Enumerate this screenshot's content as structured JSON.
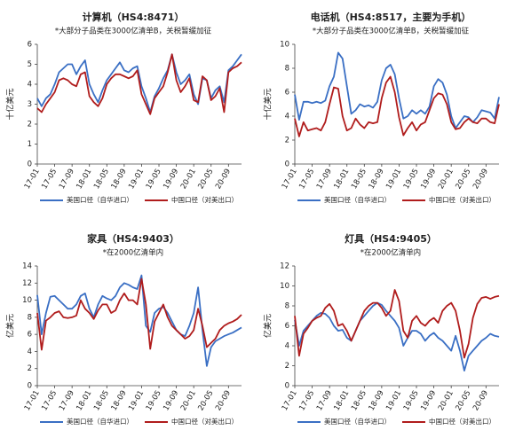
{
  "chart_data": [
    {
      "type": "line",
      "title": "计算机（HS4:8471）",
      "subtitle": "*大部分子品类在3000亿清单B，关税暂缓加征",
      "ylabel": "十亿美元",
      "categories": [
        "17-01",
        null,
        null,
        null,
        "17-05",
        null,
        null,
        null,
        "17-09",
        null,
        null,
        null,
        "18-01",
        null,
        null,
        null,
        "18-05",
        null,
        null,
        null,
        "18-09",
        null,
        null,
        null,
        "19-01",
        null,
        null,
        null,
        "19-05",
        null,
        null,
        null,
        "19-09",
        null,
        null,
        null,
        "20-01",
        null,
        null,
        null,
        "20-05",
        null,
        null,
        null,
        "20-09",
        null,
        null,
        null
      ],
      "ylim": [
        0,
        6
      ],
      "yticks": [
        0,
        1,
        2,
        3,
        4,
        5,
        6
      ],
      "series": [
        {
          "name": "美国口径（自华进口）",
          "color": "#3a6fc4",
          "values": [
            3.3,
            2.9,
            3.3,
            3.5,
            4.0,
            4.6,
            4.8,
            5.0,
            5.0,
            4.5,
            4.9,
            5.2,
            4.0,
            3.5,
            3.1,
            3.7,
            4.2,
            4.5,
            4.8,
            5.1,
            4.7,
            4.6,
            4.8,
            4.9,
            3.9,
            3.3,
            2.6,
            3.4,
            3.8,
            4.3,
            4.7,
            5.5,
            4.6,
            4.0,
            4.2,
            4.5,
            3.5,
            3.0,
            4.3,
            4.2,
            3.3,
            3.7,
            3.9,
            3.1,
            4.7,
            4.9,
            5.2,
            5.5
          ]
        },
        {
          "name": "中国口径（对美出口）",
          "color": "#b01c1c",
          "values": [
            2.8,
            2.6,
            3.0,
            3.3,
            3.6,
            4.2,
            4.3,
            4.2,
            4.0,
            3.9,
            4.5,
            4.6,
            3.4,
            3.1,
            2.9,
            3.3,
            4.0,
            4.3,
            4.5,
            4.5,
            4.4,
            4.3,
            4.4,
            4.7,
            3.5,
            3.0,
            2.5,
            3.3,
            3.6,
            3.9,
            4.6,
            5.5,
            4.2,
            3.6,
            3.9,
            4.3,
            3.2,
            3.1,
            4.4,
            4.2,
            3.2,
            3.4,
            3.8,
            2.6,
            4.6,
            4.8,
            4.9,
            5.1
          ]
        }
      ]
    },
    {
      "type": "line",
      "title": "电话机（HS4:8517，主要为手机）",
      "subtitle": "*大部分子品类在3000亿清单B，关税暂缓加征",
      "ylabel": "十亿美元",
      "categories": [
        "17-01",
        null,
        null,
        null,
        "17-05",
        null,
        null,
        null,
        "17-09",
        null,
        null,
        null,
        "18-01",
        null,
        null,
        null,
        "18-05",
        null,
        null,
        null,
        "18-09",
        null,
        null,
        null,
        "19-01",
        null,
        null,
        null,
        "19-05",
        null,
        null,
        null,
        "19-09",
        null,
        null,
        null,
        "20-01",
        null,
        null,
        null,
        "20-05",
        null,
        null,
        null,
        "20-09",
        null,
        null,
        null
      ],
      "ylim": [
        0,
        10
      ],
      "yticks": [
        0,
        2,
        4,
        6,
        8,
        10
      ],
      "series": [
        {
          "name": "美国口径（自华进口）",
          "color": "#3a6fc4",
          "values": [
            5.8,
            3.7,
            5.2,
            5.2,
            5.1,
            5.2,
            5.1,
            5.3,
            6.5,
            7.3,
            9.3,
            8.8,
            6.5,
            4.2,
            4.5,
            5.0,
            4.8,
            4.9,
            4.7,
            5.2,
            7.0,
            8.0,
            8.3,
            7.5,
            5.5,
            3.8,
            4.0,
            4.5,
            4.2,
            4.5,
            4.2,
            4.8,
            6.5,
            7.1,
            6.8,
            5.8,
            4.0,
            3.0,
            3.5,
            4.0,
            3.9,
            3.5,
            3.9,
            4.5,
            4.4,
            4.3,
            3.8,
            5.6
          ]
        },
        {
          "name": "中国口径（对美出口）",
          "color": "#b01c1c",
          "values": [
            3.8,
            2.3,
            3.5,
            2.8,
            2.9,
            3.0,
            2.8,
            3.5,
            5.0,
            6.4,
            6.3,
            4.0,
            2.8,
            3.0,
            3.8,
            3.3,
            3.0,
            3.5,
            3.4,
            3.5,
            5.5,
            6.8,
            7.3,
            6.0,
            3.9,
            2.4,
            3.0,
            3.5,
            2.8,
            3.3,
            3.5,
            4.5,
            5.5,
            5.9,
            5.8,
            5.0,
            3.5,
            2.9,
            3.0,
            3.5,
            3.8,
            3.5,
            3.4,
            3.8,
            3.8,
            3.5,
            3.4,
            5.0
          ]
        }
      ]
    },
    {
      "type": "line",
      "title": "家具（HS4:9403）",
      "subtitle": "*在2000亿清单内",
      "ylabel": "亿美元",
      "categories": [
        "17-01",
        null,
        null,
        null,
        "17-05",
        null,
        null,
        null,
        "17-09",
        null,
        null,
        null,
        "18-01",
        null,
        null,
        null,
        "18-05",
        null,
        null,
        null,
        "18-09",
        null,
        null,
        null,
        "19-01",
        null,
        null,
        null,
        "19-05",
        null,
        null,
        null,
        "19-09",
        null,
        null,
        null,
        "20-01",
        null,
        null,
        null,
        "20-05",
        null,
        null,
        null,
        "20-09",
        null,
        null,
        null
      ],
      "ylim": [
        0,
        14
      ],
      "yticks": [
        0,
        2,
        4,
        6,
        8,
        10,
        12,
        14
      ],
      "series": [
        {
          "name": "美国口径（自华进口）",
          "color": "#3a6fc4",
          "values": [
            10.6,
            6.0,
            8.5,
            10.4,
            10.5,
            10.0,
            9.5,
            9.0,
            9.0,
            9.5,
            10.5,
            10.8,
            9.0,
            8.0,
            9.5,
            10.5,
            10.2,
            10.0,
            10.5,
            11.5,
            12.0,
            11.8,
            11.5,
            11.3,
            12.9,
            7.0,
            6.3,
            8.5,
            9.0,
            9.2,
            8.5,
            7.5,
            6.5,
            6.0,
            5.8,
            7.0,
            8.5,
            11.5,
            6.5,
            2.3,
            4.5,
            5.2,
            5.5,
            5.8,
            6.0,
            6.2,
            6.5,
            6.8
          ]
        },
        {
          "name": "中国口径（对美出口）",
          "color": "#b01c1c",
          "values": [
            8.5,
            4.2,
            7.6,
            8.0,
            8.5,
            8.7,
            8.0,
            7.9,
            8.0,
            8.2,
            10.0,
            9.0,
            8.5,
            7.8,
            8.8,
            9.5,
            9.5,
            8.5,
            8.8,
            10.0,
            10.8,
            10.0,
            10.0,
            9.5,
            12.5,
            9.5,
            4.3,
            7.5,
            8.5,
            9.5,
            8.0,
            7.0,
            6.5,
            6.0,
            5.5,
            5.8,
            6.5,
            9.0,
            7.0,
            4.5,
            5.0,
            5.5,
            6.5,
            7.0,
            7.3,
            7.5,
            7.8,
            8.3
          ]
        }
      ]
    },
    {
      "type": "line",
      "title": "灯具（HS4:9405）",
      "subtitle": "*在2000亿清单内",
      "ylabel": "亿美元",
      "categories": [
        "17-01",
        null,
        null,
        null,
        "17-05",
        null,
        null,
        null,
        "17-09",
        null,
        null,
        null,
        "18-01",
        null,
        null,
        null,
        "18-05",
        null,
        null,
        null,
        "18-09",
        null,
        null,
        null,
        "19-01",
        null,
        null,
        null,
        "19-05",
        null,
        null,
        null,
        "19-09",
        null,
        null,
        null,
        "20-01",
        null,
        null,
        null,
        "20-05",
        null,
        null,
        null,
        "20-09",
        null,
        null,
        null
      ],
      "ylim": [
        0,
        12
      ],
      "yticks": [
        0,
        2,
        4,
        6,
        8,
        10,
        12
      ],
      "series": [
        {
          "name": "美国口径（自华进口）",
          "color": "#3a6fc4",
          "values": [
            6.6,
            4.0,
            5.5,
            6.0,
            6.5,
            7.0,
            7.3,
            7.2,
            6.8,
            6.0,
            5.5,
            5.6,
            4.8,
            4.5,
            5.5,
            6.5,
            7.0,
            7.5,
            8.0,
            8.3,
            8.1,
            7.5,
            7.0,
            6.5,
            5.8,
            4.0,
            4.8,
            5.5,
            5.5,
            5.2,
            4.5,
            5.0,
            5.3,
            4.8,
            4.5,
            4.0,
            3.5,
            5.0,
            3.5,
            1.5,
            3.0,
            3.5,
            4.0,
            4.5,
            4.8,
            5.2,
            5.0,
            4.9
          ]
        },
        {
          "name": "中国口径（对美出口）",
          "color": "#b01c1c",
          "values": [
            7.0,
            3.0,
            5.2,
            5.8,
            6.5,
            6.8,
            7.0,
            7.8,
            8.2,
            7.5,
            6.0,
            6.2,
            5.5,
            4.5,
            5.5,
            6.5,
            7.5,
            8.0,
            8.3,
            8.3,
            7.8,
            7.0,
            7.5,
            9.6,
            8.5,
            5.5,
            4.8,
            6.5,
            7.0,
            6.3,
            6.0,
            6.5,
            6.8,
            6.3,
            7.5,
            8.0,
            8.3,
            7.5,
            5.5,
            2.8,
            4.2,
            6.8,
            8.2,
            8.8,
            8.9,
            8.7,
            8.9,
            9.0
          ]
        }
      ]
    }
  ]
}
